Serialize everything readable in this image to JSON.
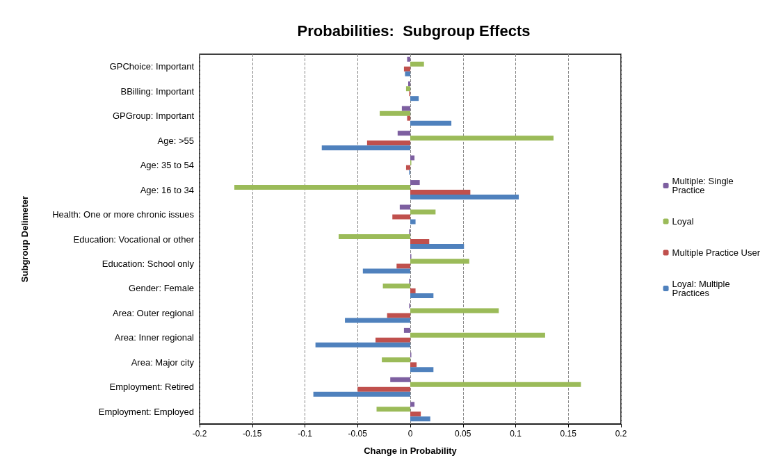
{
  "chart_data": {
    "type": "bar",
    "orientation": "horizontal",
    "title": "Probabilities:  Subgroup Effects",
    "xlabel": "Change in Probability",
    "ylabel": "Subgroup Delimeter",
    "categories": [
      "GPChoice: Important",
      "BBilling: Important",
      "GPGroup: Important",
      "Age: >55",
      "Age: 35 to 54",
      "Age: 16 to 34",
      "Health: One or more chronic issues",
      "Education: Vocational or other",
      "Education: School only",
      "Gender: Female",
      "Area: Outer regional",
      "Area: Inner regional",
      "Area: Major city",
      "Employment: Retired",
      "Employment: Employed"
    ],
    "series": [
      {
        "name": "Multiple: Single Practice",
        "color": "#7d5fa0",
        "values": [
          -0.003,
          -0.002,
          -0.008,
          -0.012,
          0.004,
          0.009,
          -0.01,
          -0.001,
          0.001,
          -0.001,
          -0.001,
          -0.006,
          0.001,
          -0.019,
          0.004
        ]
      },
      {
        "name": "Loyal",
        "color": "#9bbb59",
        "values": [
          0.013,
          -0.004,
          -0.029,
          0.136,
          0.001,
          -0.167,
          0.024,
          -0.068,
          0.056,
          -0.026,
          0.084,
          0.128,
          -0.027,
          0.162,
          -0.032
        ]
      },
      {
        "name": "Multiple Practice User",
        "color": "#c0504d",
        "values": [
          -0.006,
          -0.001,
          -0.003,
          -0.041,
          -0.004,
          0.057,
          -0.017,
          0.018,
          -0.013,
          0.005,
          -0.022,
          -0.033,
          0.006,
          -0.05,
          0.01
        ]
      },
      {
        "name": "Loyal: Multiple Practices",
        "color": "#4f81bd",
        "values": [
          -0.005,
          0.008,
          0.039,
          -0.084,
          -0.001,
          0.103,
          0.005,
          0.051,
          -0.045,
          0.022,
          -0.062,
          -0.09,
          0.022,
          -0.092,
          0.019
        ]
      }
    ],
    "xlim": [
      -0.2,
      0.2
    ],
    "xticks": [
      -0.2,
      -0.15,
      -0.1,
      -0.05,
      0,
      0.05,
      0.1,
      0.15,
      0.2
    ],
    "grid": "x",
    "line_style": "dashed",
    "legend": "right"
  }
}
